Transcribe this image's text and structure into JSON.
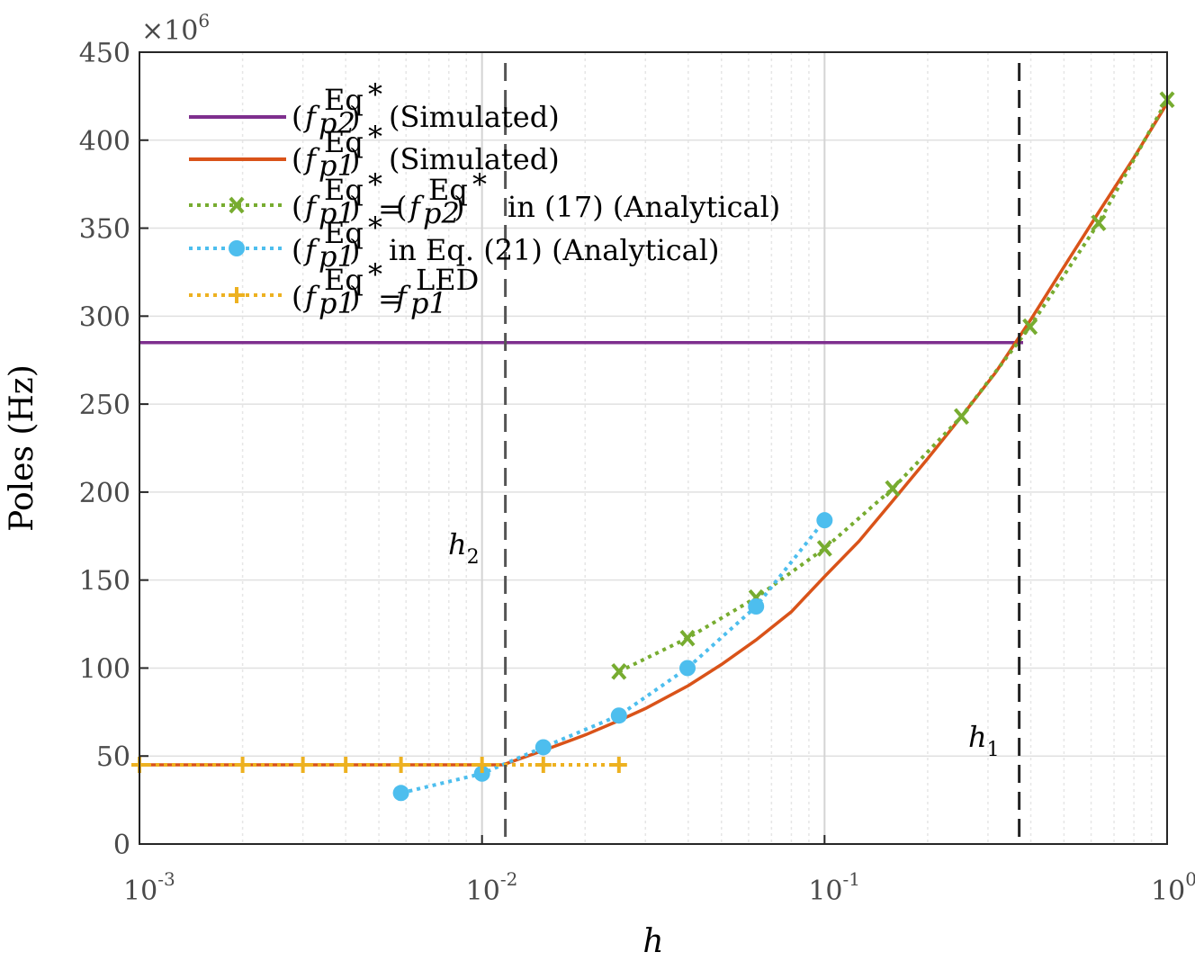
{
  "chart_data": {
    "type": "line",
    "title": "",
    "xlabel": "h",
    "ylabel": "Poles (Hz)",
    "xscale": "log",
    "xlim": [
      0.001,
      1
    ],
    "ylim": [
      0,
      450
    ],
    "y_multiplier": "×10^6",
    "y_multiplier_base": "×10",
    "y_multiplier_exp": "6",
    "grid": true,
    "legend_position": "top-left",
    "x_ticks": [
      {
        "value": 0.001,
        "base": "10",
        "exp": "-3"
      },
      {
        "value": 0.01,
        "base": "10",
        "exp": "-2"
      },
      {
        "value": 0.1,
        "base": "10",
        "exp": "-1"
      },
      {
        "value": 1,
        "base": "10",
        "exp": "0"
      }
    ],
    "y_ticks": [
      "0",
      "50",
      "100",
      "150",
      "200",
      "250",
      "300",
      "350",
      "400",
      "450"
    ],
    "series": [
      {
        "name": "(f_p2^Eq)* (Simulated)",
        "legend_label": "(Simulated)",
        "legend_sub": "p2",
        "color": "#7e2f8e",
        "style": "solid",
        "marker": "none",
        "x": [
          0.001,
          0.38
        ],
        "y": [
          285,
          285
        ]
      },
      {
        "name": "(f_p1^Eq)* (Simulated)",
        "legend_label": "(Simulated)",
        "legend_sub": "p1",
        "color": "#d95319",
        "style": "solid",
        "marker": "none",
        "x": [
          0.001,
          0.005,
          0.0115,
          0.015,
          0.02,
          0.025,
          0.03,
          0.04,
          0.05,
          0.0631,
          0.08,
          0.1,
          0.126,
          0.158,
          0.2,
          0.251,
          0.316,
          0.4,
          0.5,
          0.631,
          0.8,
          1.0
        ],
        "y": [
          45,
          45,
          45,
          53,
          62,
          70,
          77,
          90,
          102,
          116,
          132,
          152,
          172,
          195,
          219,
          243,
          268,
          298,
          328,
          359,
          390,
          421
        ]
      },
      {
        "name": "(f_p1^Eq)* = (f_p2^Eq)* in (17) (Analytical)",
        "legend_label": "in (17) (Analytical)",
        "legend_sub": "p1",
        "legend_sub2": "p2",
        "color": "#77ac30",
        "style": "dotted",
        "marker": "x",
        "x": [
          0.0251,
          0.0398,
          0.0631,
          0.1,
          0.158,
          0.251,
          0.398,
          0.631,
          1.0
        ],
        "y": [
          98,
          117,
          140,
          168,
          202,
          243,
          294,
          353,
          423
        ]
      },
      {
        "name": "(f_p1^Eq)* in Eq. (21) (Analytical)",
        "legend_label": "in Eq. (21) (Analytical)",
        "legend_sub": "p1",
        "color": "#4dbeee",
        "style": "dotted",
        "marker": "o",
        "x": [
          0.0058,
          0.01,
          0.0151,
          0.0251,
          0.0398,
          0.0631,
          0.1
        ],
        "y": [
          29,
          40,
          55,
          73,
          100,
          135,
          184
        ]
      },
      {
        "name": "(f_p1^Eq)* = f_p1^LED",
        "legend_label": "= f",
        "legend_sub": "p1",
        "legend_sup2": "LED",
        "color": "#edb120",
        "style": "dotted",
        "marker": "+",
        "x": [
          0.001,
          0.002,
          0.003,
          0.004,
          0.0058,
          0.01,
          0.0151,
          0.0251
        ],
        "y": [
          45,
          45,
          45,
          45,
          45,
          45,
          45,
          45
        ]
      }
    ],
    "vlines": [
      {
        "x": 0.0117,
        "label": "h",
        "label_sub": "2",
        "style": "dashed",
        "color": "#555555"
      },
      {
        "x": 0.37,
        "label": "h",
        "label_sub": "1",
        "style": "dashed",
        "color": "#222222"
      }
    ]
  }
}
